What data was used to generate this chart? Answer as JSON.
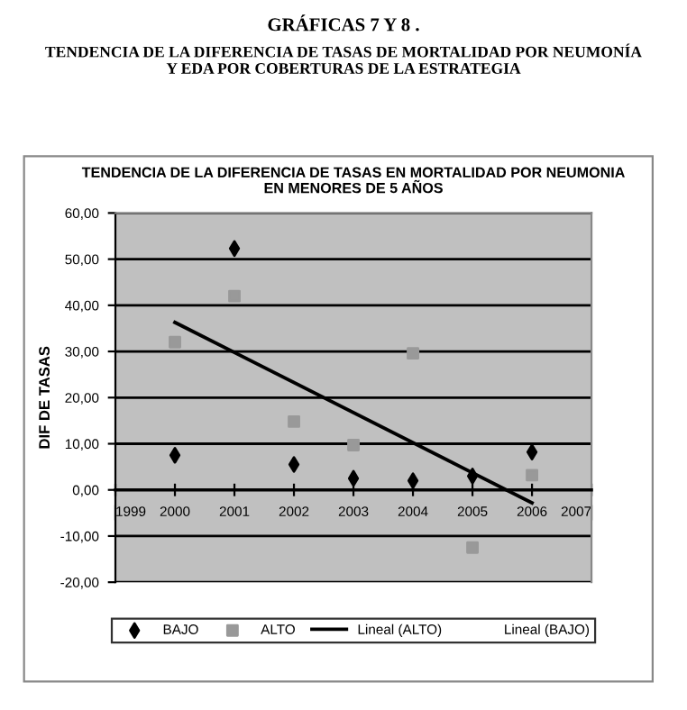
{
  "chart_data": {
    "type": "scatter",
    "title": "TENDENCIA DE LA DIFERENCIA DE TASAS EN MORTALIDAD POR NEUMONIA\nEN MENORES DE 5 AÑOS",
    "ylabel": "DIF DE TASAS",
    "annotations": [
      "GRÁFICAS 7 Y 8 .",
      "TENDENCIA DE LA DIFERENCIA DE TASAS DE MORTALIDAD POR NEUMONÍA\nY EDA POR COBERTURAS DE LA ESTRATEGIA"
    ],
    "x": [
      2000,
      2001,
      2002,
      2003,
      2004,
      2005,
      2006
    ],
    "series": [
      {
        "name": "BAJO",
        "color": "#000000",
        "marker": "diamond",
        "values": [
          7.5,
          52.3,
          5.5,
          2.5,
          2.0,
          3.0,
          8.2
        ]
      },
      {
        "name": "ALTO",
        "color": "#999999",
        "marker": "square",
        "values": [
          32.0,
          42.0,
          14.8,
          9.7,
          29.6,
          -12.5,
          3.2
        ]
      },
      {
        "name": "Lineal (ALTO)",
        "type": "line",
        "color": "#000000",
        "marker": "none",
        "x": [
          2000,
          2006
        ],
        "values": [
          36.3,
          -2.8
        ]
      },
      {
        "name": "Lineal (BAJO)",
        "type": "line",
        "color": "#000000",
        "marker": "none",
        "values": [
          null,
          null,
          null,
          null,
          null,
          null,
          null
        ]
      }
    ],
    "xlim": [
      1999,
      2007
    ],
    "xticks": [
      1999,
      2000,
      2001,
      2002,
      2003,
      2004,
      2005,
      2006,
      2007
    ],
    "ylim": [
      -20,
      60
    ],
    "yticks": [
      {
        "value": -20,
        "label": "-20,00"
      },
      {
        "value": -10,
        "label": "-10,00"
      },
      {
        "value": 0,
        "label": "0,00"
      },
      {
        "value": 10,
        "label": "10,00"
      },
      {
        "value": 20,
        "label": "20,00"
      },
      {
        "value": 30,
        "label": "30,00"
      },
      {
        "value": 40,
        "label": "40,00"
      },
      {
        "value": 50,
        "label": "50,00"
      },
      {
        "value": 60,
        "label": "60,00"
      }
    ],
    "grid": "y",
    "legend": "bottom"
  }
}
